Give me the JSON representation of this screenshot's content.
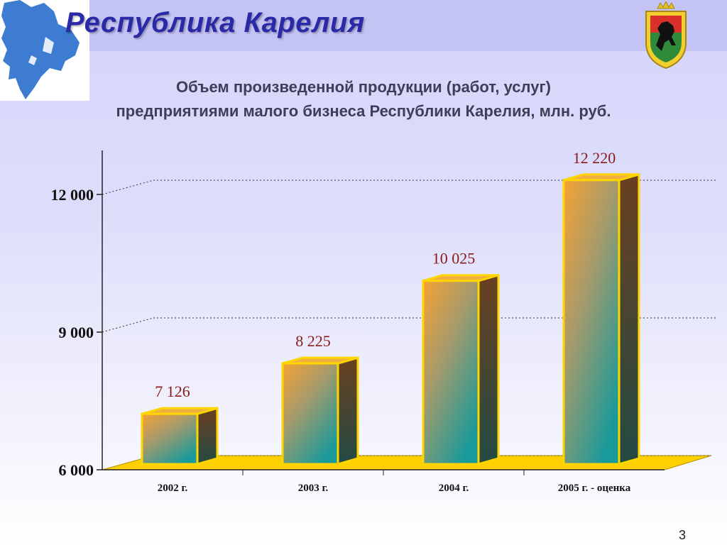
{
  "slide": {
    "title": "Республика Карелия",
    "page_number": "3"
  },
  "chart_data": {
    "type": "bar",
    "title_lines": [
      "Объем произведенной продукции (работ, услуг)",
      "предприятиями малого бизнеса Республики Карелия, млн. руб."
    ],
    "categories": [
      "2002 г.",
      "2003 г.",
      "2004 г.",
      "2005 г. - оценка"
    ],
    "values": [
      7126,
      8225,
      10025,
      12220
    ],
    "value_labels": [
      "7 126",
      "8 225",
      "10 025",
      "12 220"
    ],
    "yticks": [
      6000,
      9000,
      12000
    ],
    "ytick_labels": [
      "6 000",
      "9 000",
      "12 000"
    ],
    "ylim": [
      6000,
      13000
    ],
    "grid": true,
    "colors": {
      "bar_top": "#f4a23a",
      "bar_bottom": "#1e9a98",
      "bar_border": "#ffd500",
      "bar_side": "#4a3b2c",
      "floor": "#ffd000",
      "value_label": "#8a1a1a"
    }
  }
}
